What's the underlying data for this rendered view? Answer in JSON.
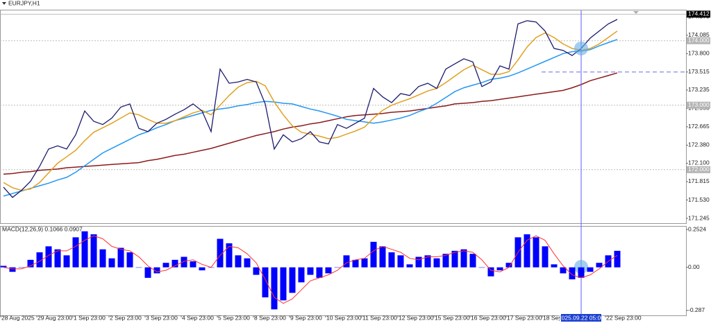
{
  "chart_data": [
    {
      "type": "line",
      "title": "EURJPY,H1",
      "categories": [
        null,
        "28 Aug 2025",
        null,
        null,
        null,
        "29 Aug 23:00",
        null,
        null,
        null,
        "1 Sep 23:00",
        null,
        null,
        null,
        "2 Sep 23:00",
        null,
        null,
        null,
        "3 Sep 23:00",
        null,
        null,
        null,
        "4 Sep 23:00",
        null,
        null,
        null,
        "5 Sep 23:00",
        null,
        null,
        null,
        "8 Sep 23:00",
        null,
        null,
        null,
        "9 Sep 23:00",
        null,
        null,
        null,
        "10 Sep 23:00",
        null,
        null,
        null,
        "11 Sep 23:00",
        null,
        null,
        null,
        "12 Sep 23:00",
        null,
        null,
        null,
        "15 Sep 23:00",
        null,
        null,
        null,
        "16 Sep 23:00",
        null,
        null,
        null,
        "17 Sep 23:00",
        null,
        null,
        null,
        "18 Sep 23:00",
        null,
        null,
        "2025.09.22 05:00",
        null,
        null,
        null,
        "22 Sep 23:00"
      ],
      "highlight": "2025.09.22 05:00",
      "series": [
        {
          "color": "#8b1a1a",
          "values": [
            171.93,
            171.94,
            171.96,
            171.97,
            171.99,
            172.0,
            172.01,
            172.03,
            172.04,
            172.05,
            172.06,
            172.07,
            172.08,
            172.09,
            172.1,
            172.11,
            172.14,
            172.16,
            172.19,
            172.22,
            172.24,
            172.27,
            172.3,
            172.33,
            172.37,
            172.41,
            172.45,
            172.49,
            172.53,
            172.56,
            172.59,
            172.63,
            172.66,
            172.68,
            172.71,
            172.73,
            172.76,
            172.79,
            172.82,
            172.84,
            172.85,
            172.86,
            172.87,
            172.89,
            172.9,
            172.91,
            172.93,
            172.95,
            172.97,
            172.99,
            173.02,
            173.03,
            173.04,
            173.06,
            173.07,
            173.09,
            173.11,
            173.13,
            173.15,
            173.17,
            173.19,
            173.21,
            173.23,
            173.27,
            173.32,
            173.38,
            173.42,
            173.46,
            173.5
          ]
        },
        {
          "color": "#2196f3",
          "values": [
            171.59,
            171.63,
            171.67,
            171.71,
            171.75,
            171.79,
            171.84,
            171.88,
            171.96,
            172.06,
            172.16,
            172.26,
            172.33,
            172.4,
            172.47,
            172.54,
            172.59,
            172.65,
            172.7,
            172.76,
            172.8,
            172.84,
            172.88,
            172.92,
            172.94,
            172.96,
            172.99,
            173.01,
            173.04,
            173.06,
            173.05,
            173.03,
            173.02,
            172.98,
            172.94,
            172.91,
            172.87,
            172.83,
            172.78,
            172.76,
            172.74,
            172.72,
            172.74,
            172.77,
            172.8,
            172.84,
            172.9,
            172.95,
            173.03,
            173.12,
            173.21,
            173.27,
            173.31,
            173.35,
            173.4,
            173.42,
            173.45,
            173.5,
            173.56,
            173.62,
            173.68,
            173.74,
            173.8,
            173.83,
            173.84,
            173.86,
            173.92,
            173.97,
            174.02
          ]
        },
        {
          "color": "#e0a020",
          "values": [
            171.8,
            171.72,
            171.68,
            171.7,
            171.8,
            171.95,
            172.1,
            172.2,
            172.3,
            172.45,
            172.58,
            172.65,
            172.72,
            172.8,
            172.88,
            172.85,
            172.78,
            172.72,
            172.72,
            172.76,
            172.82,
            172.88,
            172.92,
            172.85,
            173.0,
            173.15,
            173.28,
            173.35,
            173.37,
            173.3,
            173.05,
            172.85,
            172.68,
            172.58,
            172.55,
            172.52,
            172.48,
            172.5,
            172.55,
            172.6,
            172.66,
            172.8,
            172.92,
            173.0,
            173.05,
            173.1,
            173.16,
            173.22,
            173.26,
            173.35,
            173.45,
            173.55,
            173.62,
            173.55,
            173.48,
            173.48,
            173.52,
            173.7,
            173.9,
            174.05,
            174.12,
            174.05,
            173.95,
            173.88,
            173.85,
            173.88,
            173.95,
            174.05,
            174.15
          ]
        },
        {
          "color": "#1a1a6e",
          "values": [
            171.73,
            171.57,
            171.68,
            171.82,
            172.05,
            172.32,
            172.37,
            172.32,
            172.54,
            172.91,
            172.75,
            172.7,
            172.8,
            172.97,
            173.02,
            172.64,
            172.59,
            172.72,
            172.78,
            172.86,
            172.93,
            173.02,
            172.91,
            172.59,
            173.56,
            173.34,
            173.36,
            173.4,
            173.36,
            173.02,
            172.32,
            172.54,
            172.43,
            172.48,
            172.59,
            172.43,
            172.4,
            172.7,
            172.64,
            172.72,
            172.8,
            173.26,
            173.13,
            173.04,
            173.18,
            173.15,
            173.29,
            173.34,
            173.26,
            173.56,
            173.64,
            173.72,
            173.67,
            173.29,
            173.36,
            173.61,
            173.56,
            174.26,
            174.31,
            174.29,
            174.15,
            173.88,
            173.85,
            173.77,
            173.88,
            174.04,
            174.15,
            174.26,
            174.33
          ]
        }
      ],
      "ylim": [
        171.17,
        174.47
      ],
      "yticks": [
        171.245,
        {
          "value": 171.53,
          "label": "171.530"
        },
        171.815,
        {
          "value": 172.1,
          "label": "172.100"
        },
        {
          "value": 172.38,
          "label": "172.380"
        },
        172.665,
        {
          "value": 172.95,
          "label": "172.950"
        },
        173.235,
        173.515,
        {
          "value": 173.8,
          "label": "173.800"
        },
        174.085,
        {
          "value": 174.37,
          "label": "174.370"
        }
      ],
      "levels": [
        {
          "value": 174,
          "label": "174.000"
        },
        {
          "value": 173,
          "label": "173.000"
        },
        {
          "value": 172,
          "label": "172.000"
        }
      ],
      "dashed_level": 173.515,
      "current_price": {
        "value": 174.412,
        "label": "174.412"
      }
    },
    {
      "type": "macd",
      "title": "MACD(12,26,9) 0.1066 0.0907",
      "histogram": {
        "color": "#0000ff",
        "values": [
          0.01,
          -0.03,
          0.0,
          0.05,
          0.1,
          0.14,
          0.12,
          0.08,
          0.2,
          0.24,
          0.22,
          0.12,
          0.06,
          0.13,
          0.1,
          0.0,
          -0.07,
          -0.04,
          0.03,
          0.05,
          0.07,
          0.04,
          -0.02,
          0.0,
          0.19,
          0.16,
          0.08,
          0.06,
          -0.05,
          -0.2,
          -0.28,
          -0.22,
          -0.17,
          -0.1,
          -0.05,
          -0.07,
          -0.04,
          0.0,
          0.08,
          0.05,
          0.06,
          0.17,
          0.14,
          0.1,
          0.08,
          0.02,
          0.07,
          0.08,
          0.06,
          0.09,
          0.11,
          0.12,
          0.09,
          0.0,
          -0.06,
          -0.02,
          0.03,
          0.2,
          0.22,
          0.2,
          0.14,
          0.02,
          -0.04,
          -0.08,
          -0.07,
          -0.03,
          0.03,
          0.08,
          0.11
        ]
      },
      "signal": {
        "color": "#ff3030",
        "values": [
          0.0,
          -0.01,
          -0.01,
          0.01,
          0.04,
          0.08,
          0.11,
          0.11,
          0.14,
          0.18,
          0.21,
          0.19,
          0.14,
          0.12,
          0.11,
          0.07,
          0.01,
          -0.03,
          -0.02,
          0.01,
          0.04,
          0.05,
          0.02,
          0.0,
          0.08,
          0.14,
          0.13,
          0.09,
          0.03,
          -0.08,
          -0.2,
          -0.24,
          -0.21,
          -0.15,
          -0.09,
          -0.07,
          -0.05,
          -0.02,
          0.03,
          0.05,
          0.06,
          0.11,
          0.14,
          0.12,
          0.1,
          0.06,
          0.05,
          0.07,
          0.07,
          0.08,
          0.1,
          0.11,
          0.1,
          0.05,
          -0.02,
          -0.03,
          0.0,
          0.1,
          0.18,
          0.21,
          0.18,
          0.09,
          0.01,
          -0.05,
          -0.07,
          -0.05,
          -0.01,
          0.04,
          0.08
        ]
      },
      "ylim": [
        -0.32,
        0.271
      ],
      "yticks": [
        0.2524,
        {
          "value": 0,
          "label": "0.00"
        },
        -0.287
      ]
    }
  ]
}
